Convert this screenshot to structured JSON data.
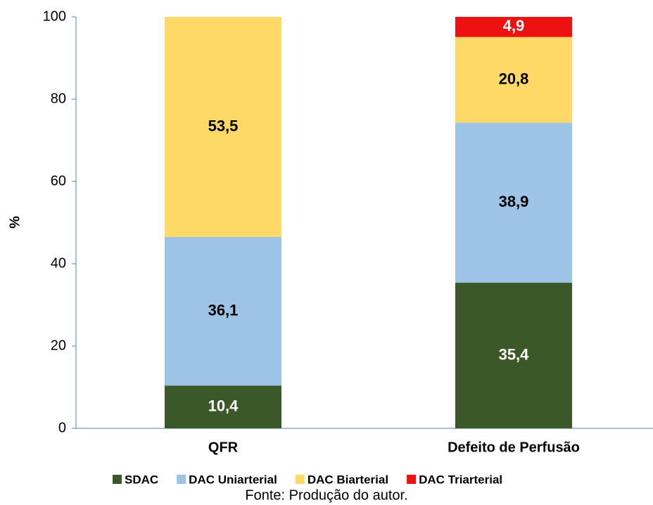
{
  "chart_data": {
    "type": "stacked-bar",
    "categories": [
      "QFR",
      "Defeito de Perfusão"
    ],
    "y_label": "%",
    "ylim": [
      0,
      100
    ],
    "yticks": [
      0,
      20,
      40,
      60,
      80,
      100
    ],
    "series": [
      {
        "name": "SDAC",
        "color": "#3b5828",
        "label_color": "#ffffff",
        "values": [
          10.4,
          35.4
        ],
        "value_labels": [
          "10,4",
          "35,4"
        ]
      },
      {
        "name": "DAC Uniarterial",
        "color": "#9dc3e6",
        "label_color": "#000000",
        "values": [
          36.1,
          38.9
        ],
        "value_labels": [
          "36,1",
          "38,9"
        ]
      },
      {
        "name": "DAC Biarterial",
        "color": "#ffd966",
        "label_color": "#000000",
        "values": [
          53.5,
          20.8
        ],
        "value_labels": [
          "53,5",
          "20,8"
        ]
      },
      {
        "name": "DAC Triarterial",
        "color": "#ee1111",
        "label_color": "#ffffff",
        "values": [
          null,
          4.9
        ],
        "value_labels": [
          null,
          "4,9"
        ]
      }
    ],
    "caption": "Fonte: Produção do autor."
  }
}
